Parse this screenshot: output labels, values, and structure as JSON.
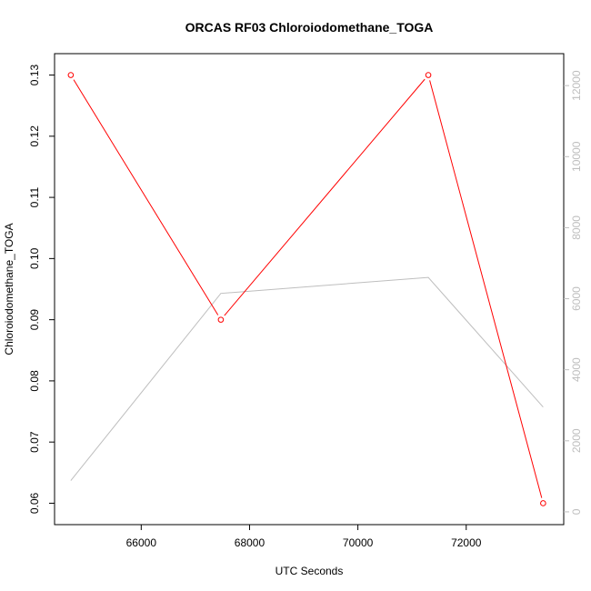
{
  "chart_data": {
    "type": "line",
    "title": "ORCAS RF03 Chloroiodomethane_TOGA",
    "xlabel": "UTC Seconds",
    "ylabel": "Chloroiodomethane_TOGA",
    "y2label": "",
    "xlim": [
      64400,
      73800
    ],
    "ylim": [
      0.0565,
      0.1335
    ],
    "y2lim": [
      -360,
      12900
    ],
    "x_ticks": [
      66000,
      68000,
      70000,
      72000
    ],
    "y_ticks": [
      0.06,
      0.07,
      0.08,
      0.09,
      0.1,
      0.11,
      0.12,
      0.13
    ],
    "y_tick_labels": [
      "0.06",
      "0.07",
      "0.08",
      "0.09",
      "0.10",
      "0.11",
      "0.12",
      "0.13"
    ],
    "y2_ticks": [
      0,
      2000,
      4000,
      6000,
      8000,
      10000,
      12000
    ],
    "grid": false,
    "series": [
      {
        "axis": "left",
        "color": "#ff0000",
        "markers": "open-circle",
        "x": [
          64700,
          67470,
          71300,
          73420
        ],
        "values": [
          0.13,
          0.09,
          0.13,
          0.06
        ]
      },
      {
        "axis": "right",
        "color": "#bebebe",
        "markers": "none",
        "x": [
          64700,
          67470,
          71300,
          73420
        ],
        "values": [
          880,
          6150,
          6600,
          2950
        ]
      }
    ]
  }
}
